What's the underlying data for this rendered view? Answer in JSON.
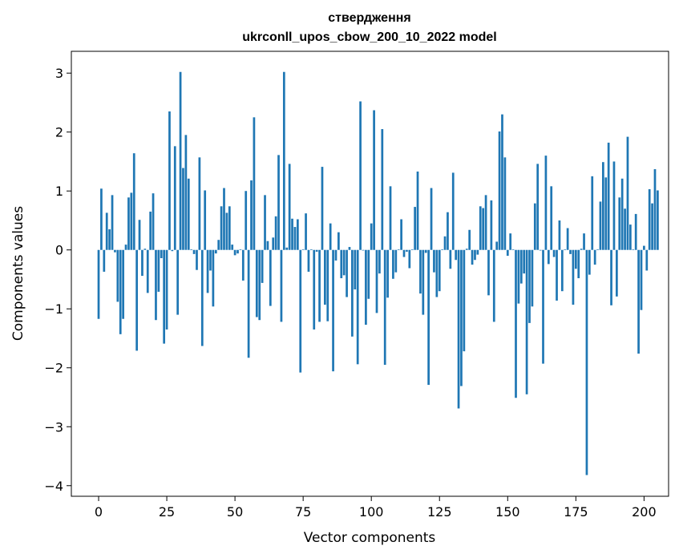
{
  "chart_data": {
    "type": "bar",
    "title": "ствердження",
    "subtitle": "ukrconll_upos_cbow_200_10_2022 model",
    "xlabel": "Vector components",
    "ylabel": "Components values",
    "xlim": [
      -10,
      209
    ],
    "ylim": [
      -4.18,
      3.37
    ],
    "xticks": [
      0,
      25,
      50,
      75,
      100,
      125,
      150,
      175,
      200
    ],
    "yticks": [
      -4,
      -3,
      -2,
      -1,
      0,
      1,
      2,
      3
    ],
    "ytick_labels": [
      "−4",
      "−3",
      "−2",
      "−1",
      "0",
      "1",
      "2",
      "3"
    ],
    "bar_color": "#1f77b4",
    "values": [
      -1.17,
      1.04,
      -0.37,
      0.63,
      0.35,
      0.93,
      -0.04,
      -0.88,
      -1.43,
      -1.17,
      0.09,
      0.89,
      0.97,
      1.64,
      -1.71,
      0.51,
      -0.44,
      0.02,
      -0.73,
      0.65,
      0.96,
      -1.19,
      -0.71,
      -0.14,
      -1.59,
      -1.35,
      2.35,
      -0.02,
      1.76,
      -1.1,
      3.02,
      1.39,
      1.95,
      1.21,
      0.01,
      -0.07,
      -0.34,
      1.57,
      -1.63,
      1.01,
      -0.73,
      -0.35,
      -0.96,
      -0.06,
      0.17,
      0.74,
      1.05,
      0.63,
      0.74,
      0.09,
      -0.09,
      -0.06,
      0.01,
      -0.52,
      1.0,
      -1.83,
      1.18,
      2.25,
      -1.14,
      -1.19,
      -0.56,
      0.93,
      0.15,
      -0.95,
      0.21,
      0.57,
      1.61,
      -1.22,
      3.02,
      0.04,
      1.46,
      0.53,
      0.39,
      0.52,
      -2.08,
      0.01,
      0.62,
      -0.37,
      0.01,
      -1.35,
      -0.03,
      -1.22,
      1.41,
      -0.93,
      -1.21,
      0.45,
      -2.06,
      -0.18,
      0.3,
      -0.48,
      -0.43,
      -0.8,
      0.05,
      -1.47,
      -0.67,
      -1.94,
      2.52,
      -0.01,
      -1.27,
      -0.83,
      0.45,
      2.37,
      -1.07,
      -0.4,
      2.05,
      -1.95,
      -0.81,
      1.08,
      -0.49,
      -0.38,
      0.01,
      0.52,
      -0.12,
      -0.03,
      -0.31,
      0.01,
      0.73,
      1.33,
      -0.74,
      -1.1,
      -0.05,
      -2.29,
      1.05,
      -0.38,
      -0.8,
      -0.7,
      0.01,
      0.23,
      0.64,
      -0.32,
      1.31,
      -0.17,
      -2.69,
      -2.31,
      -1.72,
      0.02,
      0.34,
      -0.25,
      -0.17,
      -0.08,
      0.74,
      0.71,
      0.93,
      -0.77,
      0.84,
      -1.22,
      0.14,
      2.01,
      2.3,
      1.57,
      -0.1,
      0.28,
      0.01,
      -2.51,
      -0.91,
      -0.57,
      -0.4,
      -2.45,
      -1.24,
      -0.96,
      0.79,
      1.46,
      -0.01,
      -1.93,
      1.6,
      -0.24,
      1.08,
      -0.12,
      -0.86,
      0.5,
      -0.7,
      0.01,
      0.37,
      -0.07,
      -0.93,
      -0.32,
      -0.48,
      0.02,
      0.28,
      -3.82,
      -0.42,
      1.25,
      -0.25,
      0.01,
      0.82,
      1.49,
      1.23,
      1.82,
      -0.94,
      1.5,
      -0.79,
      0.89,
      1.21,
      0.7,
      1.92,
      0.43,
      0.01,
      0.61,
      -1.76,
      -1.02,
      0.07,
      -0.35,
      1.03,
      0.79,
      1.37,
      1.01
    ]
  }
}
